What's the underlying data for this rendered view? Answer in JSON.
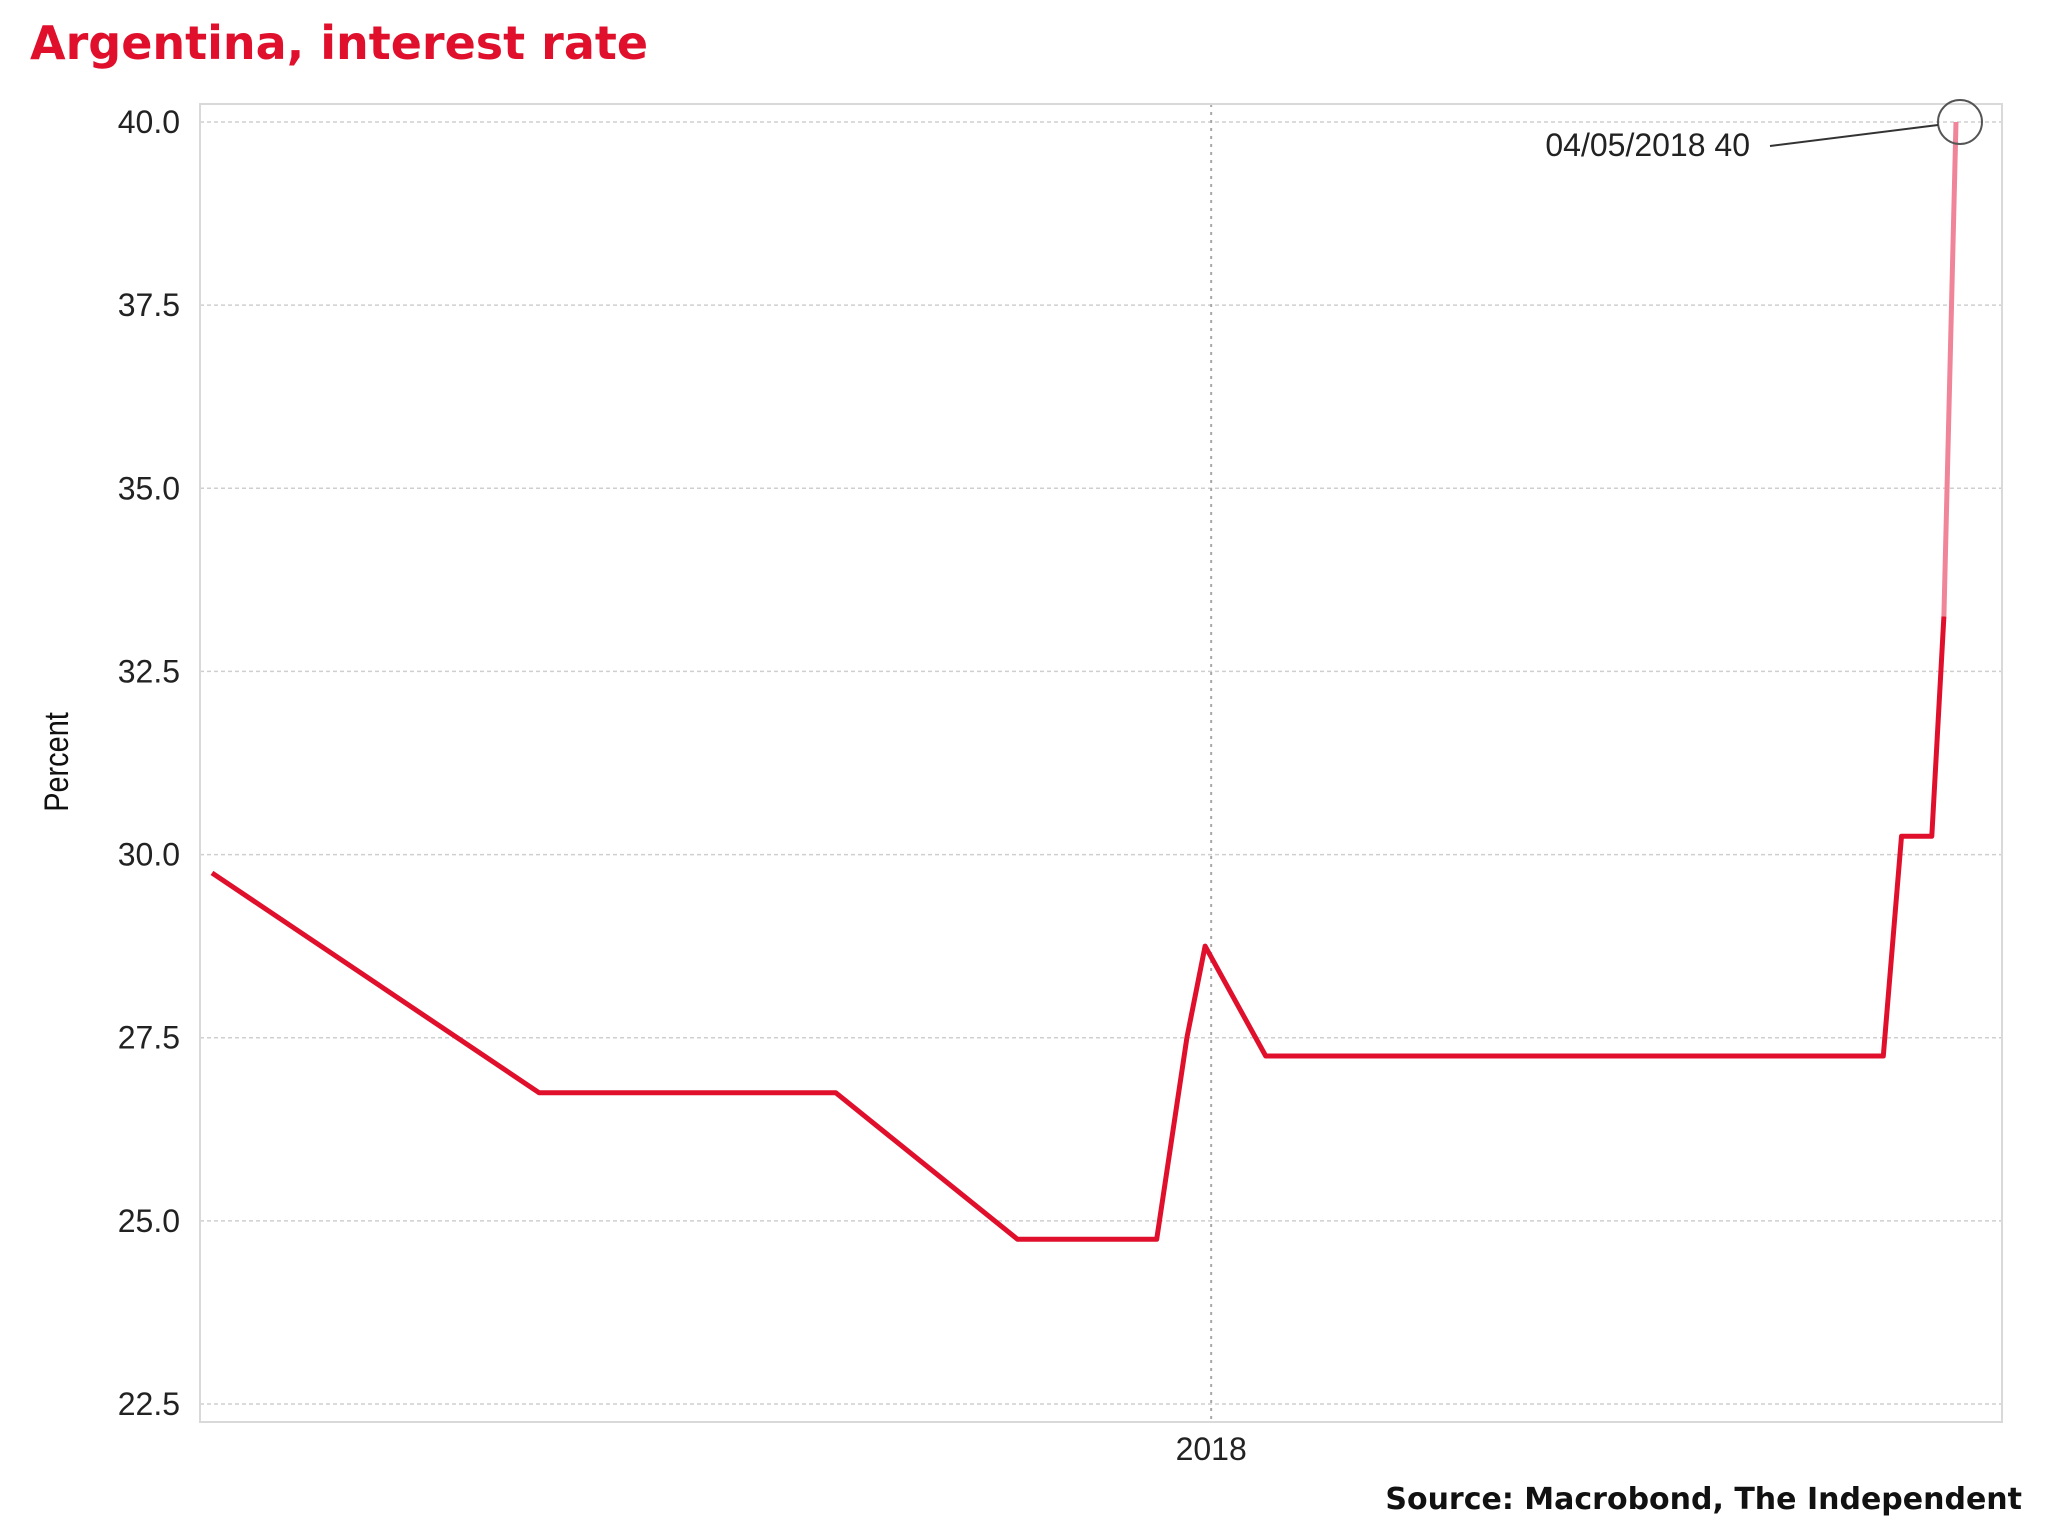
{
  "title": "Argentina, interest rate",
  "source": "Source: Macrobond, The Independent",
  "chart_data": {
    "type": "line",
    "ylabel": "Percent",
    "xlabel": "",
    "ylim": [
      22.5,
      40.0
    ],
    "yticks": [
      "22.5",
      "25.0",
      "27.5",
      "30.0",
      "32.5",
      "35.0",
      "37.5",
      "40.0"
    ],
    "xticks": [
      "2018"
    ],
    "grid": true,
    "series": [
      {
        "color": "#e0102c",
        "highlight_color": "#f08498",
        "points": [
          {
            "x": "2017-07-20",
            "y": 29.75
          },
          {
            "x": "2017-09-12",
            "y": 26.75
          },
          {
            "x": "2017-10-31",
            "y": 26.75
          },
          {
            "x": "2017-11-30",
            "y": 24.75
          },
          {
            "x": "2017-12-23",
            "y": 24.75
          },
          {
            "x": "2017-12-28",
            "y": 27.5
          },
          {
            "x": "2017-12-31",
            "y": 28.75
          },
          {
            "x": "2018-01-10",
            "y": 27.25
          },
          {
            "x": "2018-04-22",
            "y": 27.25
          },
          {
            "x": "2018-04-25",
            "y": 30.25
          },
          {
            "x": "2018-04-30",
            "y": 30.25
          },
          {
            "x": "2018-05-02",
            "y": 33.25
          },
          {
            "x": "2018-05-04",
            "y": 40.0
          }
        ],
        "highlight_from": "2018-05-02"
      }
    ],
    "annotation": {
      "text": "04/05/2018 40",
      "x": "2018-05-04",
      "y": 40.0
    }
  }
}
